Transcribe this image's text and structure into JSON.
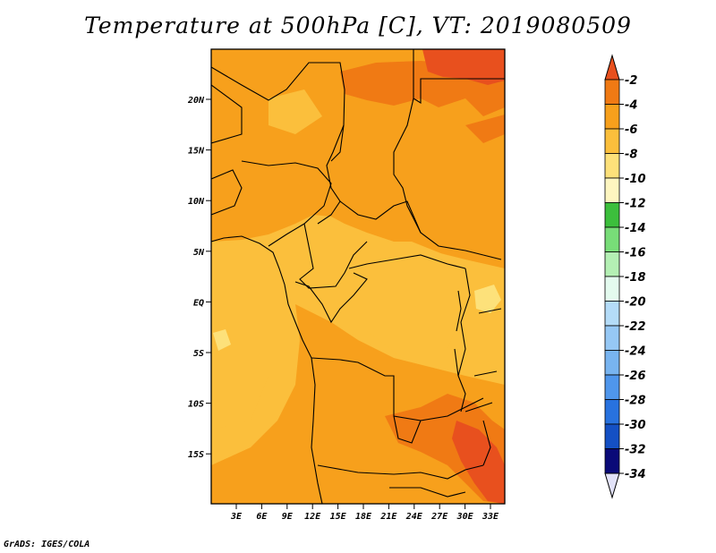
{
  "title": "Temperature at 500hPa [C], VT: 2019080509",
  "credit": "GrADS: IGES/COLA",
  "map": {
    "lon_labels": [
      "3E",
      "6E",
      "9E",
      "12E",
      "15E",
      "18E",
      "21E",
      "24E",
      "27E",
      "30E",
      "33E"
    ],
    "lat_labels": [
      "20N",
      "15N",
      "10N",
      "5N",
      "EQ",
      "5S",
      "10S",
      "15S"
    ]
  },
  "colorbar": {
    "labels": [
      "-2",
      "-4",
      "-6",
      "-8",
      "-10",
      "-12",
      "-14",
      "-16",
      "-18",
      "-20",
      "-22",
      "-24",
      "-26",
      "-28",
      "-30",
      "-32",
      "-34"
    ],
    "colors": [
      "#e8501e",
      "#f07a14",
      "#f7a01c",
      "#fbbf3c",
      "#fde17a",
      "#fef6c0",
      "#3cbf3c",
      "#78dd78",
      "#b4f0b4",
      "#e4fbef",
      "#b4dcf8",
      "#96c8f5",
      "#78b4f0",
      "#4f96ec",
      "#2872df",
      "#1450c4",
      "#0a0a78",
      "#e2e2f8"
    ],
    "top_cap_color": "#e8501e",
    "bottom_cap_color": "#e2e2f8"
  },
  "colors": {
    "base_field": "#fbbf3c",
    "warm_field": "#f7a01c",
    "hot_field": "#f07a14",
    "hottest_field": "#e8501e",
    "cool_field": "#fde17a"
  }
}
